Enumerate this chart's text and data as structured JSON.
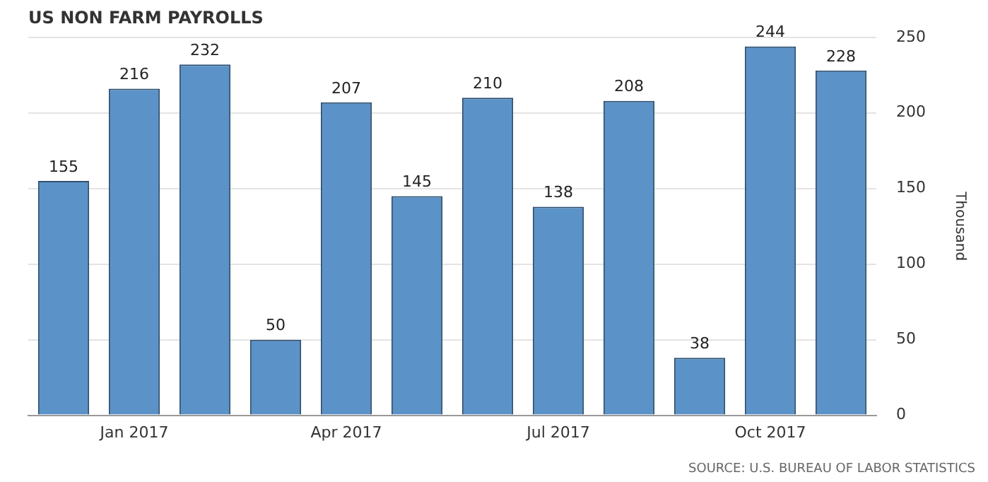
{
  "chart_data": {
    "type": "bar",
    "title": "US NON FARM PAYROLLS",
    "ylabel": "Thousand",
    "categories": [
      null,
      "Jan 2017",
      null,
      null,
      "Apr 2017",
      null,
      null,
      "Jul 2017",
      null,
      null,
      "Oct 2017",
      null
    ],
    "values": [
      155,
      216,
      232,
      50,
      207,
      145,
      210,
      138,
      208,
      38,
      244,
      228
    ],
    "color": "#5b93c8",
    "ylim": [
      0,
      250
    ],
    "yticks": [
      0,
      50,
      100,
      150,
      200,
      250
    ],
    "grid": "y",
    "legend": false,
    "data_labels": true,
    "annotations": [
      "SOURCE: U.S. BUREAU OF LABOR STATISTICS"
    ]
  }
}
